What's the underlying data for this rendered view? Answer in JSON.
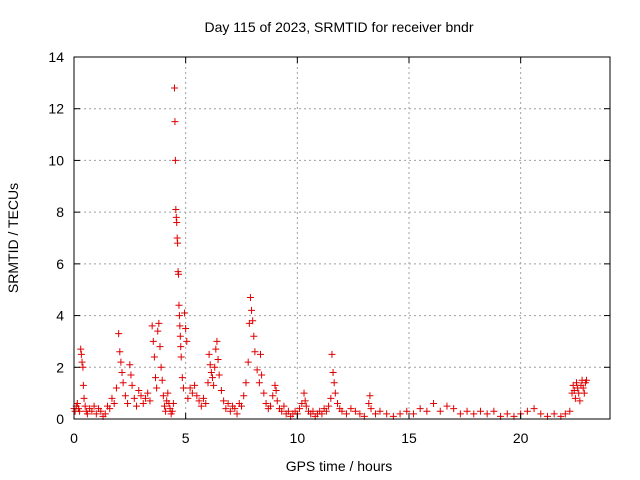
{
  "chart_data": {
    "type": "scatter",
    "title": "Day 115 of 2023, SRMTID for receiver bndr",
    "xlabel": "GPS time / hours",
    "ylabel": "SRMTID / TECUs",
    "xlim": [
      0,
      24
    ],
    "ylim": [
      0,
      14
    ],
    "xticks": [
      0,
      5,
      10,
      15,
      20
    ],
    "yticks": [
      0,
      2,
      4,
      6,
      8,
      10,
      12,
      14
    ],
    "grid": true,
    "marker": "+",
    "color": "#e00000",
    "series": [
      {
        "name": "SRMTID",
        "points": [
          [
            0.0,
            0.4
          ],
          [
            0.05,
            0.3
          ],
          [
            0.1,
            0.5
          ],
          [
            0.15,
            0.6
          ],
          [
            0.2,
            0.4
          ],
          [
            0.25,
            0.3
          ],
          [
            0.3,
            2.7
          ],
          [
            0.33,
            2.5
          ],
          [
            0.36,
            2.2
          ],
          [
            0.4,
            2.0
          ],
          [
            0.42,
            1.3
          ],
          [
            0.45,
            0.8
          ],
          [
            0.5,
            0.5
          ],
          [
            0.55,
            0.3
          ],
          [
            0.6,
            0.2
          ],
          [
            0.7,
            0.4
          ],
          [
            0.8,
            0.3
          ],
          [
            0.9,
            0.5
          ],
          [
            1.0,
            0.2
          ],
          [
            1.1,
            0.4
          ],
          [
            1.2,
            0.3
          ],
          [
            1.3,
            0.1
          ],
          [
            1.4,
            0.2
          ],
          [
            1.5,
            0.5
          ],
          [
            1.6,
            0.4
          ],
          [
            1.7,
            0.8
          ],
          [
            1.8,
            0.6
          ],
          [
            1.9,
            1.2
          ],
          [
            2.0,
            3.3
          ],
          [
            2.05,
            2.6
          ],
          [
            2.1,
            2.2
          ],
          [
            2.15,
            1.8
          ],
          [
            2.2,
            1.4
          ],
          [
            2.3,
            0.9
          ],
          [
            2.4,
            0.6
          ],
          [
            2.5,
            2.1
          ],
          [
            2.55,
            1.7
          ],
          [
            2.6,
            1.3
          ],
          [
            2.7,
            0.8
          ],
          [
            2.8,
            0.5
          ],
          [
            2.9,
            1.1
          ],
          [
            3.0,
            0.9
          ],
          [
            3.1,
            0.6
          ],
          [
            3.2,
            0.8
          ],
          [
            3.3,
            1.0
          ],
          [
            3.4,
            0.7
          ],
          [
            3.5,
            3.6
          ],
          [
            3.55,
            3.0
          ],
          [
            3.6,
            2.4
          ],
          [
            3.65,
            1.6
          ],
          [
            3.7,
            1.2
          ],
          [
            3.75,
            3.4
          ],
          [
            3.8,
            3.7
          ],
          [
            3.85,
            2.8
          ],
          [
            3.9,
            2.0
          ],
          [
            3.95,
            1.5
          ],
          [
            4.0,
            0.9
          ],
          [
            4.05,
            0.5
          ],
          [
            4.1,
            0.3
          ],
          [
            4.15,
            0.7
          ],
          [
            4.2,
            1.0
          ],
          [
            4.25,
            0.6
          ],
          [
            4.3,
            0.4
          ],
          [
            4.35,
            0.2
          ],
          [
            4.4,
            0.3
          ],
          [
            4.45,
            0.6
          ],
          [
            4.5,
            12.8
          ],
          [
            4.52,
            11.5
          ],
          [
            4.54,
            10.0
          ],
          [
            4.56,
            8.1
          ],
          [
            4.58,
            7.8
          ],
          [
            4.6,
            7.6
          ],
          [
            4.62,
            7.0
          ],
          [
            4.64,
            6.8
          ],
          [
            4.66,
            5.7
          ],
          [
            4.68,
            5.6
          ],
          [
            4.7,
            4.4
          ],
          [
            4.72,
            4.0
          ],
          [
            4.74,
            3.6
          ],
          [
            4.76,
            3.2
          ],
          [
            4.78,
            2.8
          ],
          [
            4.8,
            2.4
          ],
          [
            4.85,
            1.6
          ],
          [
            4.9,
            1.2
          ],
          [
            4.95,
            4.1
          ],
          [
            5.0,
            3.5
          ],
          [
            5.05,
            3.0
          ],
          [
            5.1,
            0.8
          ],
          [
            5.2,
            1.2
          ],
          [
            5.3,
            1.0
          ],
          [
            5.4,
            1.3
          ],
          [
            5.5,
            0.9
          ],
          [
            5.6,
            0.7
          ],
          [
            5.7,
            0.5
          ],
          [
            5.8,
            0.8
          ],
          [
            5.9,
            0.6
          ],
          [
            6.0,
            1.4
          ],
          [
            6.05,
            2.5
          ],
          [
            6.1,
            2.1
          ],
          [
            6.15,
            1.8
          ],
          [
            6.2,
            1.6
          ],
          [
            6.25,
            1.3
          ],
          [
            6.3,
            2.0
          ],
          [
            6.35,
            2.7
          ],
          [
            6.4,
            3.0
          ],
          [
            6.45,
            2.3
          ],
          [
            6.5,
            1.7
          ],
          [
            6.6,
            1.1
          ],
          [
            6.7,
            0.7
          ],
          [
            6.8,
            0.4
          ],
          [
            6.9,
            0.6
          ],
          [
            7.0,
            0.3
          ],
          [
            7.1,
            0.5
          ],
          [
            7.2,
            0.4
          ],
          [
            7.3,
            0.2
          ],
          [
            7.4,
            0.6
          ],
          [
            7.5,
            0.5
          ],
          [
            7.6,
            0.9
          ],
          [
            7.7,
            1.4
          ],
          [
            7.8,
            2.2
          ],
          [
            7.85,
            3.7
          ],
          [
            7.9,
            4.7
          ],
          [
            7.95,
            4.2
          ],
          [
            8.0,
            3.8
          ],
          [
            8.05,
            3.2
          ],
          [
            8.1,
            2.6
          ],
          [
            8.2,
            1.9
          ],
          [
            8.3,
            1.4
          ],
          [
            8.35,
            2.5
          ],
          [
            8.4,
            1.7
          ],
          [
            8.5,
            1.0
          ],
          [
            8.6,
            0.6
          ],
          [
            8.7,
            0.4
          ],
          [
            8.8,
            0.5
          ],
          [
            8.9,
            0.9
          ],
          [
            9.0,
            1.3
          ],
          [
            9.05,
            1.1
          ],
          [
            9.1,
            0.7
          ],
          [
            9.2,
            0.4
          ],
          [
            9.3,
            0.3
          ],
          [
            9.4,
            0.5
          ],
          [
            9.5,
            0.2
          ],
          [
            9.6,
            0.3
          ],
          [
            9.7,
            0.1
          ],
          [
            9.8,
            0.2
          ],
          [
            9.9,
            0.3
          ],
          [
            10.0,
            0.2
          ],
          [
            10.1,
            0.4
          ],
          [
            10.2,
            0.6
          ],
          [
            10.3,
            1.0
          ],
          [
            10.35,
            0.7
          ],
          [
            10.4,
            0.5
          ],
          [
            10.5,
            0.3
          ],
          [
            10.6,
            0.2
          ],
          [
            10.7,
            0.3
          ],
          [
            10.8,
            0.1
          ],
          [
            10.9,
            0.2
          ],
          [
            11.0,
            0.3
          ],
          [
            11.1,
            0.2
          ],
          [
            11.2,
            0.4
          ],
          [
            11.3,
            0.3
          ],
          [
            11.4,
            0.5
          ],
          [
            11.5,
            0.8
          ],
          [
            11.55,
            2.5
          ],
          [
            11.6,
            1.8
          ],
          [
            11.65,
            1.4
          ],
          [
            11.7,
            1.0
          ],
          [
            11.8,
            0.6
          ],
          [
            11.9,
            0.4
          ],
          [
            12.0,
            0.3
          ],
          [
            12.2,
            0.2
          ],
          [
            12.4,
            0.4
          ],
          [
            12.6,
            0.3
          ],
          [
            12.8,
            0.2
          ],
          [
            13.0,
            0.1
          ],
          [
            13.2,
            0.6
          ],
          [
            13.25,
            0.9
          ],
          [
            13.3,
            0.4
          ],
          [
            13.5,
            0.2
          ],
          [
            13.7,
            0.3
          ],
          [
            14.0,
            0.2
          ],
          [
            14.3,
            0.1
          ],
          [
            14.6,
            0.2
          ],
          [
            14.9,
            0.3
          ],
          [
            15.2,
            0.2
          ],
          [
            15.5,
            0.4
          ],
          [
            15.8,
            0.3
          ],
          [
            16.1,
            0.6
          ],
          [
            16.4,
            0.3
          ],
          [
            16.7,
            0.5
          ],
          [
            17.0,
            0.4
          ],
          [
            17.3,
            0.2
          ],
          [
            17.6,
            0.3
          ],
          [
            17.9,
            0.2
          ],
          [
            18.2,
            0.3
          ],
          [
            18.5,
            0.2
          ],
          [
            18.8,
            0.3
          ],
          [
            19.1,
            0.1
          ],
          [
            19.4,
            0.2
          ],
          [
            19.7,
            0.1
          ],
          [
            20.0,
            0.2
          ],
          [
            20.3,
            0.3
          ],
          [
            20.6,
            0.4
          ],
          [
            20.9,
            0.2
          ],
          [
            21.2,
            0.1
          ],
          [
            21.5,
            0.2
          ],
          [
            21.8,
            0.1
          ],
          [
            22.0,
            0.2
          ],
          [
            22.2,
            0.3
          ],
          [
            22.3,
            1.0
          ],
          [
            22.35,
            1.3
          ],
          [
            22.4,
            1.1
          ],
          [
            22.45,
            0.8
          ],
          [
            22.5,
            1.4
          ],
          [
            22.55,
            1.2
          ],
          [
            22.6,
            1.0
          ],
          [
            22.65,
            0.7
          ],
          [
            22.7,
            1.3
          ],
          [
            22.75,
            1.5
          ],
          [
            22.8,
            1.2
          ],
          [
            22.85,
            1.0
          ],
          [
            22.9,
            1.4
          ],
          [
            22.95,
            1.5
          ]
        ]
      }
    ]
  }
}
